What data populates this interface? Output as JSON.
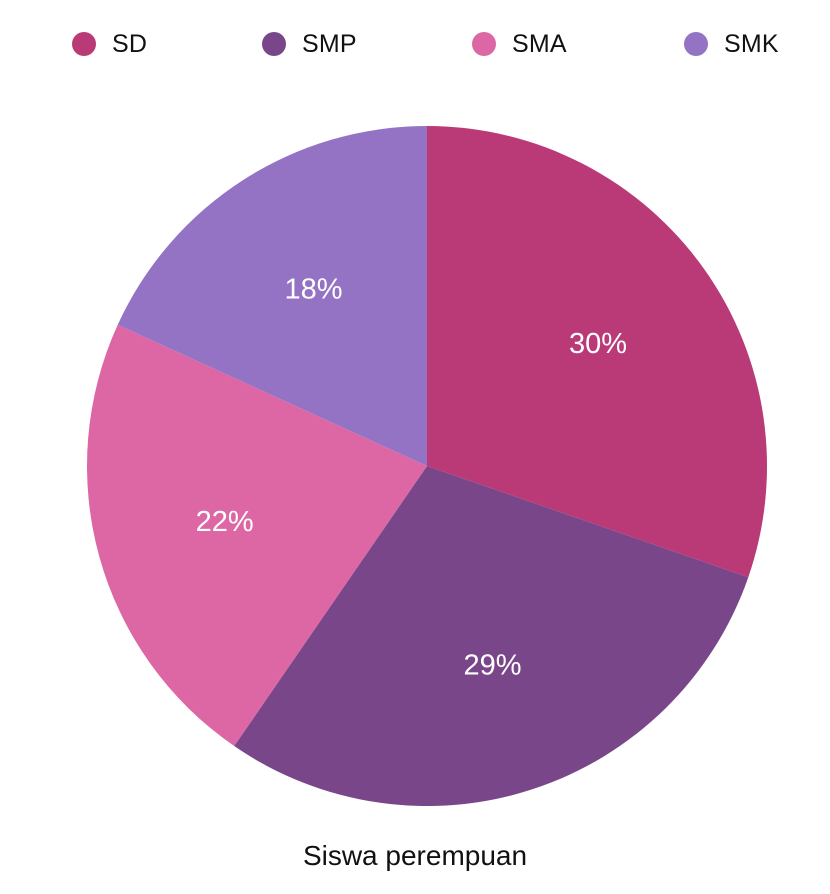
{
  "chart_data": {
    "type": "pie",
    "title": "",
    "caption": "Siswa perempuan",
    "legend_position": "top",
    "categories": [
      "SD",
      "SMP",
      "SMA",
      "SMK"
    ],
    "values": [
      30,
      29,
      22,
      18
    ],
    "labels": [
      "30%",
      "29%",
      "22%",
      "18%"
    ],
    "colors": [
      "#BA3A78",
      "#7A468A",
      "#DD67A4",
      "#9473C4"
    ]
  }
}
